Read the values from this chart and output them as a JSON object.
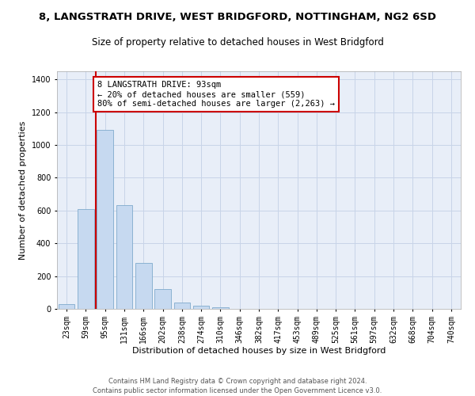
{
  "title1": "8, LANGSTRATH DRIVE, WEST BRIDGFORD, NOTTINGHAM, NG2 6SD",
  "title2": "Size of property relative to detached houses in West Bridgford",
  "xlabel": "Distribution of detached houses by size in West Bridgford",
  "ylabel": "Number of detached properties",
  "footnote1": "Contains HM Land Registry data © Crown copyright and database right 2024.",
  "footnote2": "Contains public sector information licensed under the Open Government Licence v3.0.",
  "bar_labels": [
    "23sqm",
    "59sqm",
    "95sqm",
    "131sqm",
    "166sqm",
    "202sqm",
    "238sqm",
    "274sqm",
    "310sqm",
    "346sqm",
    "382sqm",
    "417sqm",
    "453sqm",
    "489sqm",
    "525sqm",
    "561sqm",
    "597sqm",
    "632sqm",
    "668sqm",
    "704sqm",
    "740sqm"
  ],
  "bar_heights": [
    30,
    610,
    1090,
    635,
    280,
    120,
    40,
    20,
    10,
    0,
    0,
    0,
    0,
    0,
    0,
    0,
    0,
    0,
    0,
    0,
    0
  ],
  "bar_color": "#c6d9f0",
  "bar_edgecolor": "#7faacc",
  "vline_x": 1.5,
  "vline_color": "#cc0000",
  "annotation_text": "8 LANGSTRATH DRIVE: 93sqm\n← 20% of detached houses are smaller (559)\n80% of semi-detached houses are larger (2,263) →",
  "annotation_box_color": "#ffffff",
  "annotation_border_color": "#cc0000",
  "ylim": [
    0,
    1450
  ],
  "yticks": [
    0,
    200,
    400,
    600,
    800,
    1000,
    1200,
    1400
  ],
  "grid_color": "#c8d4e8",
  "background_color": "#e8eef8",
  "title1_fontsize": 9.5,
  "title2_fontsize": 8.5,
  "xlabel_fontsize": 8,
  "ylabel_fontsize": 8,
  "tick_fontsize": 7,
  "annotation_fontsize": 7.5,
  "footnote_fontsize": 6
}
